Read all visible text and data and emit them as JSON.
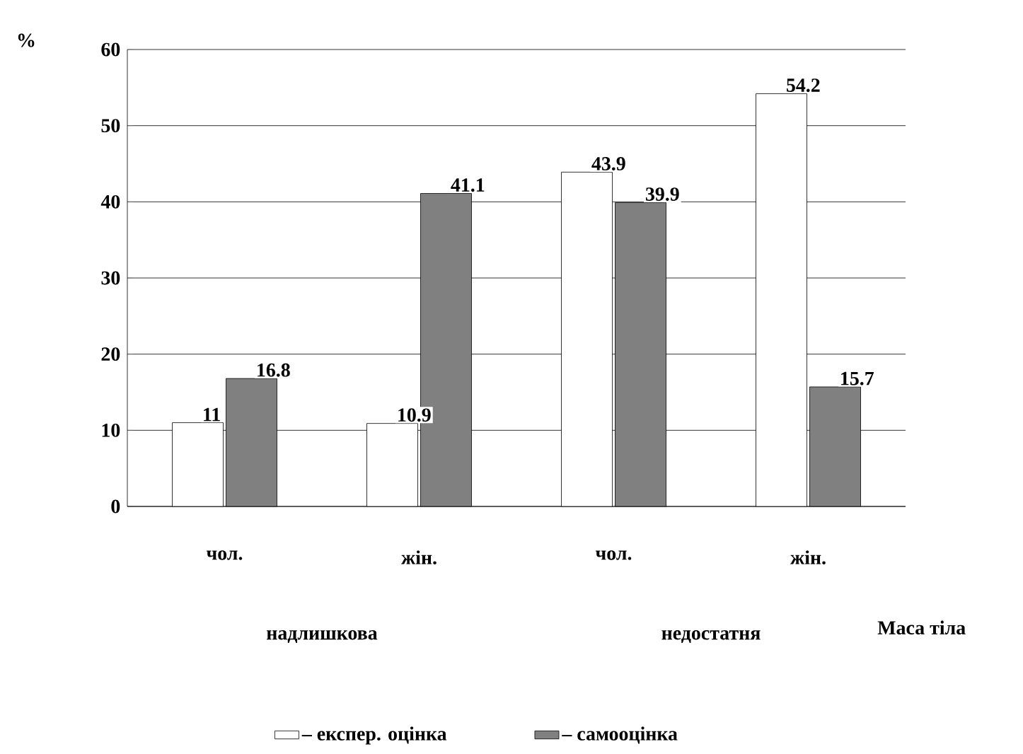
{
  "chart_data": {
    "type": "bar",
    "ylabel": "%",
    "xlabel": "Маса тіла",
    "categories": [
      "чол.",
      "жін.",
      "чол.",
      "жін."
    ],
    "series": [
      {
        "name": "– експер. оцінка",
        "color": "#ffffff",
        "values": [
          11,
          10.9,
          43.9,
          54.2
        ]
      },
      {
        "name": "– самооцінка",
        "color": "#808080",
        "values": [
          16.8,
          41.1,
          39.9,
          15.7
        ]
      }
    ],
    "annotations": [
      "надлишкова",
      "недостатня"
    ],
    "ylim": [
      0,
      60
    ],
    "yticks": [
      0,
      10,
      20,
      30,
      40,
      50,
      60
    ],
    "grid": "y",
    "legend": "bottom",
    "data_labels": true
  }
}
